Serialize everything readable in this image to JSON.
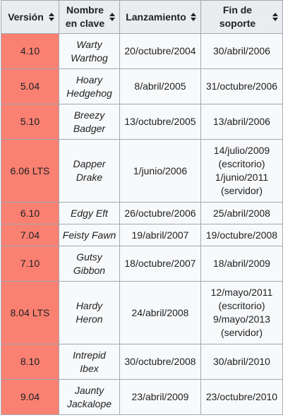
{
  "header": {
    "version": "Versión",
    "codename": "Nombre en clave",
    "release": "Lanzamiento",
    "eol": "Fin de soporte"
  },
  "rows": [
    {
      "version": "4.10",
      "codename": "Warty Warthog",
      "release": "20/octubre/2004",
      "eol": "30/abril/2006"
    },
    {
      "version": "5.04",
      "codename": "Hoary Hedgehog",
      "release": "8/abril/2005",
      "eol": "31/octubre/2006"
    },
    {
      "version": "5.10",
      "codename": "Breezy Badger",
      "release": "13/octubre/2005",
      "eol": "13/abril/2006"
    },
    {
      "version": "6.06 LTS",
      "codename": "Dapper Drake",
      "release": "1/junio/2006",
      "eol": "14/julio/2009 (escritorio) 1/junio/2011 (servidor)"
    },
    {
      "version": "6.10",
      "codename": "Edgy Eft",
      "release": "26/octubre/2006",
      "eol": "25/abril/2008"
    },
    {
      "version": "7.04",
      "codename": "Feisty Fawn",
      "release": "19/abril/2007",
      "eol": "19/octubre/2008"
    },
    {
      "version": "7.10",
      "codename": "Gutsy Gibbon",
      "release": "18/octubre/2007",
      "eol": "18/abril/2009"
    },
    {
      "version": "8.04 LTS",
      "codename": "Hardy Heron",
      "release": "24/abril/2008",
      "eol": "12/mayo/2011 (escritorio) 9/mayo/2013 (servidor)"
    },
    {
      "version": "8.10",
      "codename": "Intrepid Ibex",
      "release": "30/octubre/2008",
      "eol": "30/abril/2010"
    },
    {
      "version": "9.04",
      "codename": "Jaunty Jackalope",
      "release": "23/abril/2009",
      "eol": "23/octubre/2010"
    }
  ],
  "colors": {
    "version_cell": "#fa8072",
    "header_bg": "#eaecf0",
    "cell_bg": "#f8f9fa",
    "border": "#a2a9b1"
  },
  "icons": {
    "sort": "sort-up-down-icon"
  }
}
